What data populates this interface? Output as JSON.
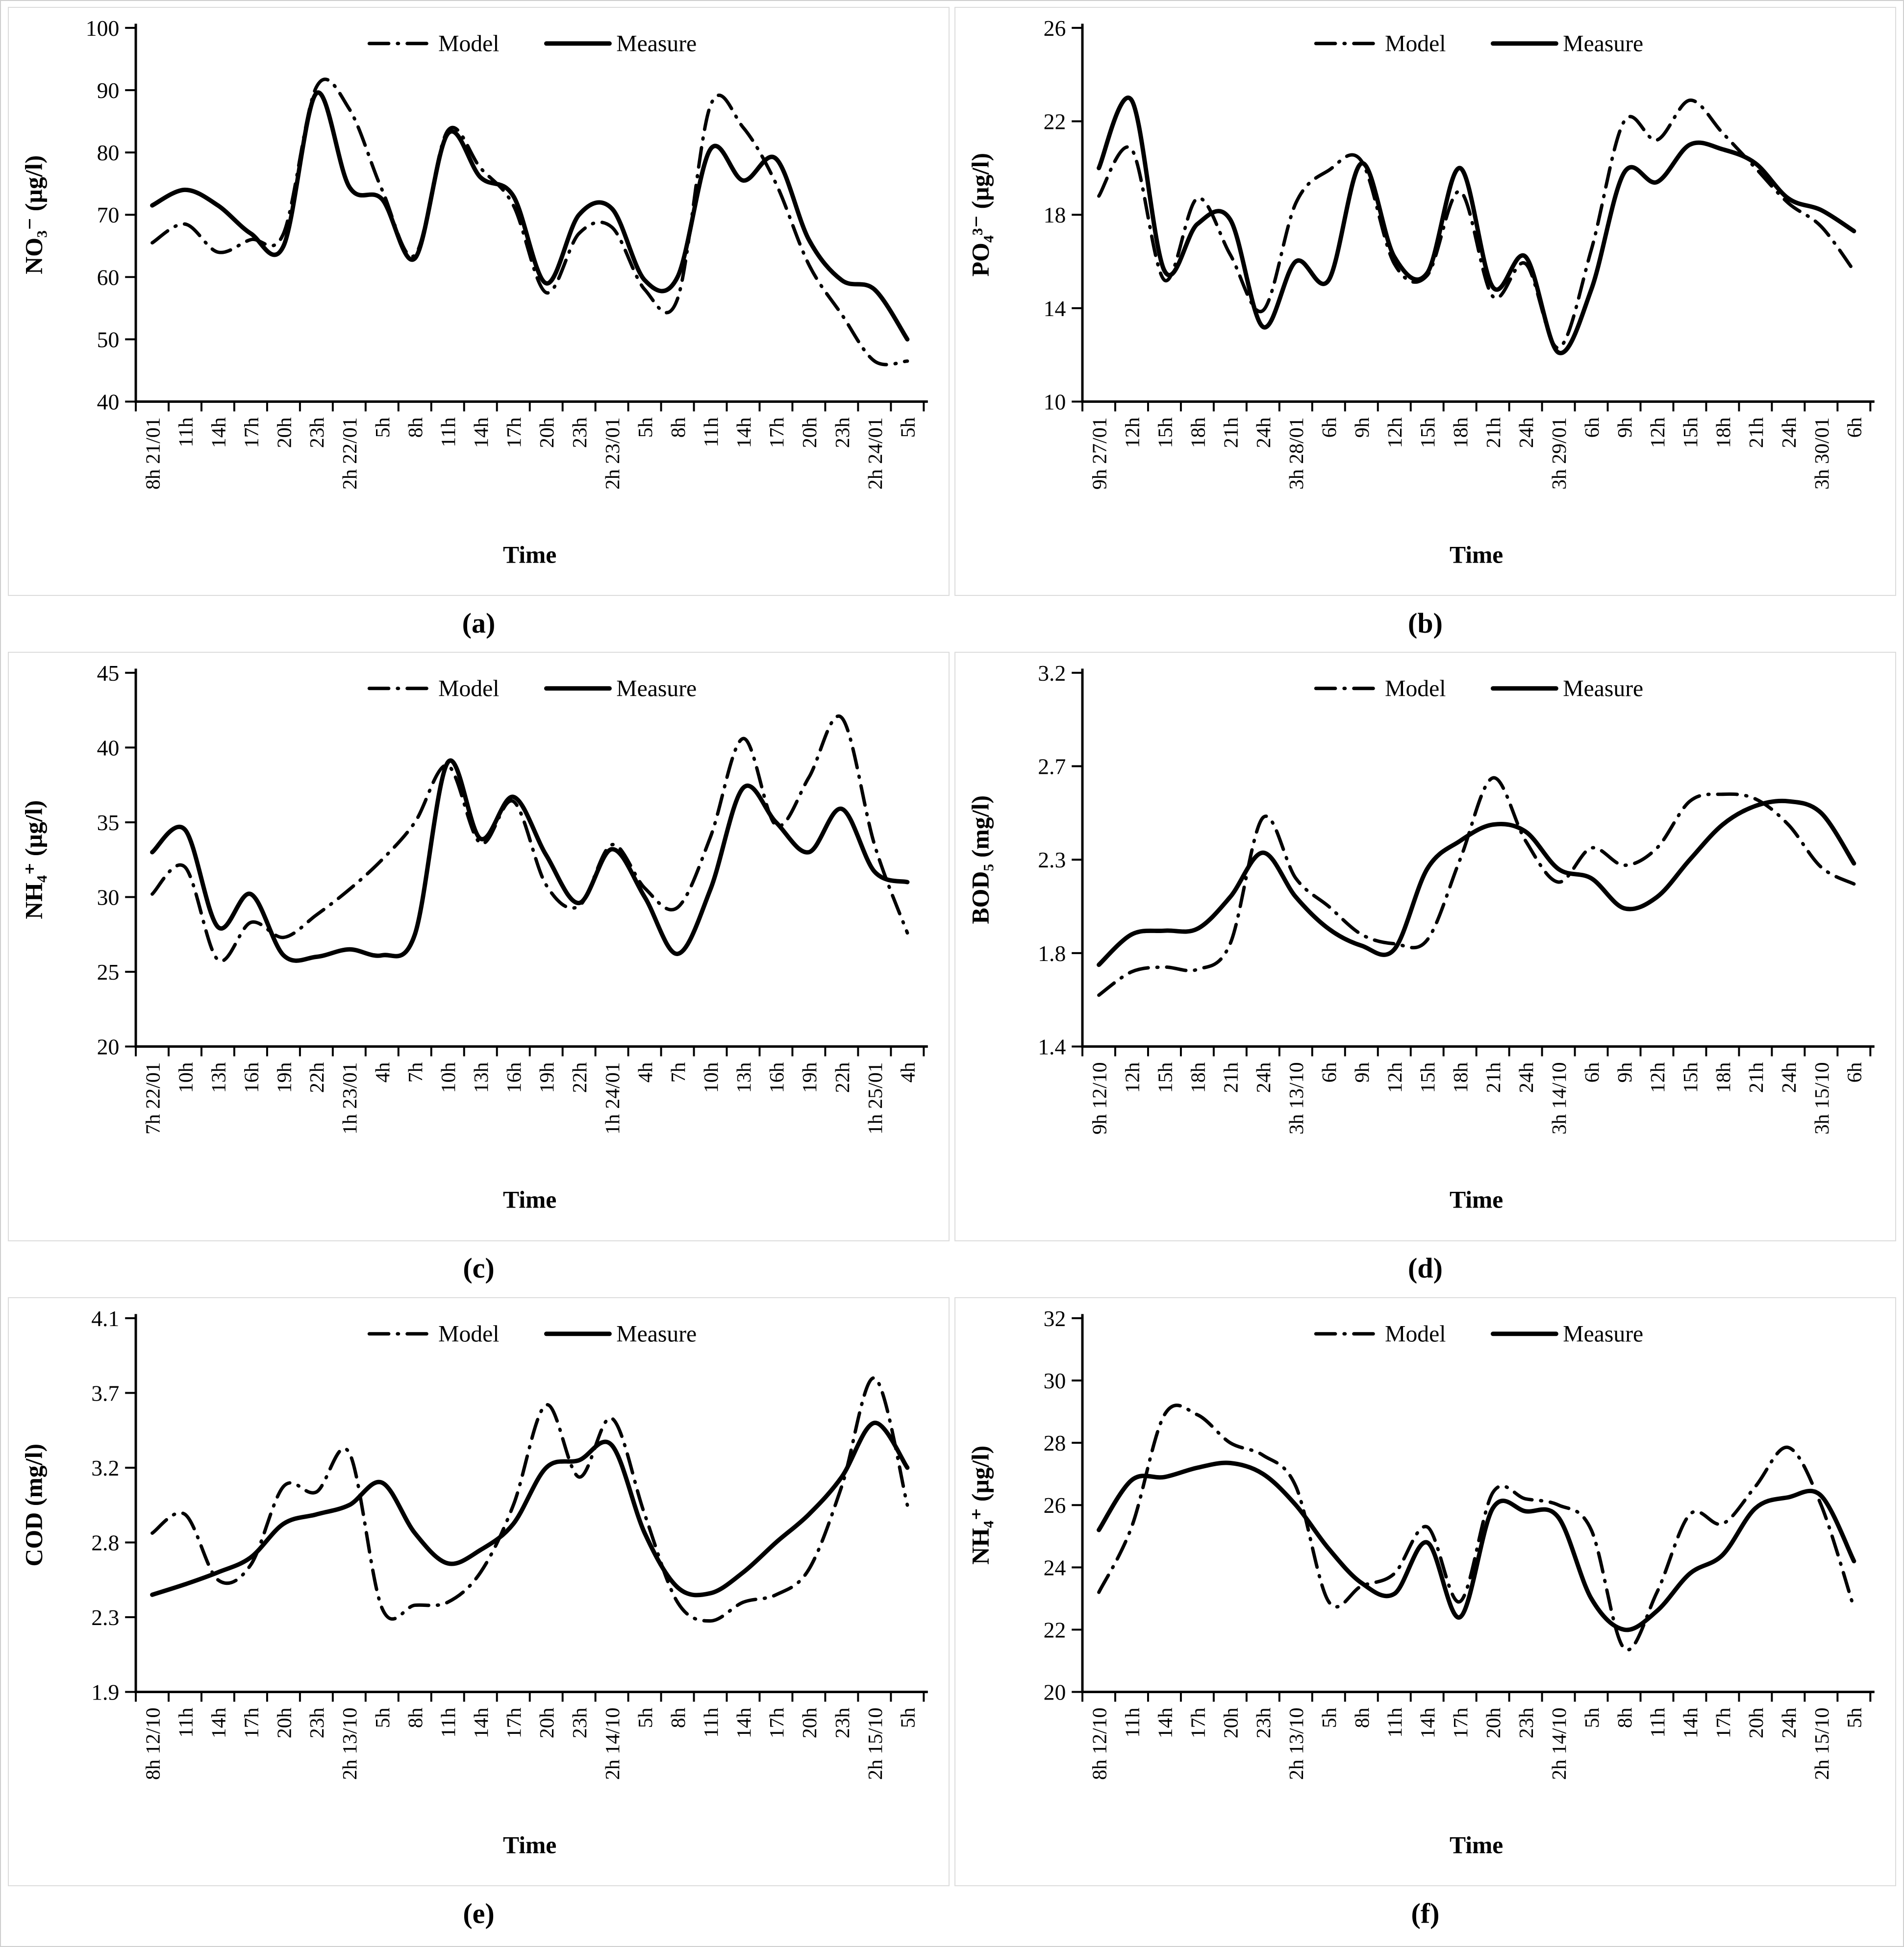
{
  "figure": {
    "background": "#ffffff",
    "panel_border": "#dcdcdc",
    "outer_border": "#cfcfcf",
    "line_color": "#000000",
    "xlabel": "Time"
  },
  "legend": {
    "model_label": "Model",
    "measure_label": "Measure",
    "position": "top-center-inside"
  },
  "chart_data": [
    {
      "id": "a",
      "type": "line",
      "caption": "(a)",
      "title": "",
      "xlabel": "Time",
      "ylabel": "NO₃⁻ (µg/l)",
      "ylim": [
        40,
        100
      ],
      "yticks": [
        40,
        50,
        60,
        70,
        80,
        90,
        100
      ],
      "grid": false,
      "categories": [
        "8h 21/01",
        "11h",
        "14h",
        "17h",
        "20h",
        "23h",
        "2h 22/01",
        "5h",
        "8h",
        "11h",
        "14h",
        "17h",
        "20h",
        "23h",
        "2h 23/01",
        "5h",
        "8h",
        "11h",
        "14h",
        "17h",
        "20h",
        "23h",
        "2h 24/01",
        "5h"
      ],
      "series": [
        {
          "name": "Model",
          "style": "dashdot",
          "values": [
            65.5,
            68.5,
            64,
            66,
            67,
            90.5,
            87,
            74,
            63.5,
            83.5,
            77.5,
            71.5,
            57.5,
            67,
            68,
            58,
            56.5,
            87.5,
            84,
            75,
            62,
            54,
            46.5,
            46.5
          ]
        },
        {
          "name": "Measure",
          "style": "solid",
          "values": [
            71.5,
            74,
            71.5,
            67,
            65,
            89.5,
            74.5,
            72.5,
            63,
            83,
            76,
            73,
            59,
            70,
            71,
            59.5,
            60,
            80.5,
            75.5,
            79,
            66,
            59.5,
            58,
            50
          ]
        }
      ]
    },
    {
      "id": "b",
      "type": "line",
      "caption": "(b)",
      "title": "",
      "xlabel": "Time",
      "ylabel": "PO₄³⁻ (µg/l)",
      "ylim": [
        10,
        26
      ],
      "yticks": [
        10,
        14,
        18,
        22,
        26
      ],
      "grid": false,
      "categories": [
        "9h 27/01",
        "12h",
        "15h",
        "18h",
        "21h",
        "24h",
        "3h 28/01",
        "6h",
        "9h",
        "12h",
        "15h",
        "18h",
        "21h",
        "24h",
        "3h 29/01",
        "6h",
        "9h",
        "12h",
        "15h",
        "18h",
        "21h",
        "24h",
        "3h 30/01",
        "6h"
      ],
      "series": [
        {
          "name": "Model",
          "style": "dashdot",
          "values": [
            18.8,
            20.8,
            15.2,
            18.7,
            16.3,
            13.9,
            18.5,
            19.9,
            20.3,
            15.9,
            15.4,
            19,
            14.5,
            15.9,
            12.3,
            16.5,
            22,
            21.2,
            22.9,
            21.5,
            20,
            18.5,
            17.5,
            15.6
          ]
        },
        {
          "name": "Measure",
          "style": "solid",
          "values": [
            20,
            22.9,
            15.6,
            17.6,
            17.8,
            13.2,
            16,
            15.2,
            20.2,
            16.2,
            15.5,
            20,
            14.9,
            16.2,
            12.1,
            14.8,
            19.8,
            19.4,
            21,
            20.8,
            20.2,
            18.7,
            18.2,
            17.3
          ]
        }
      ]
    },
    {
      "id": "c",
      "type": "line",
      "caption": "(c)",
      "title": "",
      "xlabel": "Time",
      "ylabel": "NH₄⁺ (µg/l)",
      "ylim": [
        20,
        45
      ],
      "yticks": [
        20,
        25,
        30,
        35,
        40,
        45
      ],
      "grid": false,
      "categories": [
        "7h 22/01",
        "10h",
        "13h",
        "16h",
        "19h",
        "22h",
        "1h 23/01",
        "4h",
        "7h",
        "10h",
        "13h",
        "16h",
        "19h",
        "22h",
        "1h 24/01",
        "4h",
        "7h",
        "10h",
        "13h",
        "16h",
        "19h",
        "22h",
        "1h 25/01",
        "4h"
      ],
      "series": [
        {
          "name": "Model",
          "style": "dashdot",
          "values": [
            30.2,
            32,
            25.8,
            28.3,
            27.3,
            28.8,
            30.5,
            32.5,
            35,
            38.8,
            33.6,
            36.4,
            30.8,
            29.4,
            33.5,
            30.6,
            29.3,
            34,
            40.6,
            34.8,
            38,
            42,
            33.5,
            27.6
          ]
        },
        {
          "name": "Measure",
          "style": "solid",
          "values": [
            33,
            34.5,
            28,
            30.2,
            26.1,
            26,
            26.5,
            26.1,
            27.5,
            39,
            33.9,
            36.7,
            32.8,
            29.6,
            33.2,
            30,
            26.2,
            30.5,
            37.3,
            35,
            33,
            35.9,
            31.7,
            31
          ]
        }
      ]
    },
    {
      "id": "d",
      "type": "line",
      "caption": "(d)",
      "title": "",
      "xlabel": "Time",
      "ylabel": "BOD₅ (mg/l)",
      "ylim": [
        1.4,
        3.2
      ],
      "yticks": [
        1.4,
        1.8,
        2.3,
        2.7,
        3.2
      ],
      "grid": false,
      "categories": [
        "9h 12/10",
        "12h",
        "15h",
        "18h",
        "21h",
        "24h",
        "3h 13/10",
        "6h",
        "9h",
        "12h",
        "15h",
        "18h",
        "21h",
        "24h",
        "3h 14/10",
        "6h",
        "9h",
        "12h",
        "15h",
        "18h",
        "21h",
        "24h",
        "3h 15/10",
        "6h"
      ],
      "series": [
        {
          "name": "Model",
          "style": "dashdot",
          "values": [
            1.62,
            1.72,
            1.74,
            1.73,
            1.85,
            2.48,
            2.2,
            2.05,
            1.9,
            1.85,
            1.87,
            2.3,
            2.65,
            2.38,
            2.18,
            2.35,
            2.27,
            2.35,
            2.55,
            2.58,
            2.56,
            2.45,
            2.26,
            2.17
          ]
        },
        {
          "name": "Measure",
          "style": "solid",
          "values": [
            1.75,
            1.9,
            1.92,
            1.93,
            2.1,
            2.33,
            2.1,
            1.93,
            1.84,
            1.82,
            2.25,
            2.38,
            2.45,
            2.42,
            2.25,
            2.2,
            2.04,
            2.1,
            2.3,
            2.45,
            2.53,
            2.55,
            2.5,
            2.28
          ]
        }
      ]
    },
    {
      "id": "e",
      "type": "line",
      "caption": "(e)",
      "title": "",
      "xlabel": "Time",
      "ylabel": "COD (mg/l)",
      "ylim": [
        1.9,
        4.1
      ],
      "yticks": [
        1.9,
        2.3,
        2.8,
        3.2,
        3.7,
        4.1
      ],
      "grid": false,
      "categories": [
        "8h 12/10",
        "11h",
        "14h",
        "17h",
        "20h",
        "23h",
        "2h 13/10",
        "5h",
        "8h",
        "11h",
        "14h",
        "17h",
        "20h",
        "23h",
        "2h 14/10",
        "5h",
        "8h",
        "11h",
        "14h",
        "17h",
        "20h",
        "23h",
        "2h 15/10",
        "5h"
      ],
      "series": [
        {
          "name": "Model",
          "style": "dashdot",
          "values": [
            2.85,
            2.95,
            2.55,
            2.65,
            3.1,
            3.07,
            3.3,
            2.36,
            2.38,
            2.4,
            2.6,
            3.0,
            3.62,
            3.15,
            3.53,
            2.95,
            2.4,
            2.28,
            2.4,
            2.45,
            2.62,
            3.1,
            3.78,
            3.0
          ]
        },
        {
          "name": "Measure",
          "style": "solid",
          "values": [
            2.45,
            2.52,
            2.6,
            2.7,
            2.9,
            2.95,
            3.0,
            3.12,
            2.85,
            2.66,
            2.75,
            2.9,
            3.2,
            3.25,
            3.35,
            2.85,
            2.5,
            2.46,
            2.6,
            2.8,
            2.95,
            3.15,
            3.5,
            3.2
          ]
        }
      ]
    },
    {
      "id": "f",
      "type": "line",
      "caption": "(f)",
      "title": "",
      "xlabel": "Time",
      "ylabel": "NH₄⁺ (µg/l)",
      "ylim": [
        20,
        32
      ],
      "yticks": [
        20,
        22,
        24,
        26,
        28,
        30,
        32
      ],
      "grid": false,
      "categories": [
        "8h 12/10",
        "11h",
        "14h",
        "17h",
        "20h",
        "23h",
        "2h 13/10",
        "5h",
        "8h",
        "11h",
        "14h",
        "17h",
        "20h",
        "23h",
        "2h 14/10",
        "5h",
        "8h",
        "11h",
        "14h",
        "17h",
        "20h",
        "24h",
        "2h 15/10",
        "5h"
      ],
      "series": [
        {
          "name": "Model",
          "style": "dashdot",
          "values": [
            23.2,
            25.3,
            28.9,
            28.9,
            28.0,
            27.6,
            26.6,
            22.9,
            23.4,
            23.8,
            25.3,
            22.9,
            26.4,
            26.2,
            26.0,
            25.2,
            21.4,
            23.2,
            25.7,
            25.4,
            26.6,
            27.85,
            26.0,
            22.7
          ]
        },
        {
          "name": "Measure",
          "style": "solid",
          "values": [
            25.2,
            26.8,
            26.9,
            27.2,
            27.35,
            27.0,
            26.0,
            24.6,
            23.5,
            23.15,
            24.8,
            22.4,
            25.9,
            25.8,
            25.6,
            23.0,
            22.0,
            22.6,
            23.8,
            24.4,
            25.9,
            26.25,
            26.3,
            24.2
          ]
        }
      ]
    }
  ]
}
